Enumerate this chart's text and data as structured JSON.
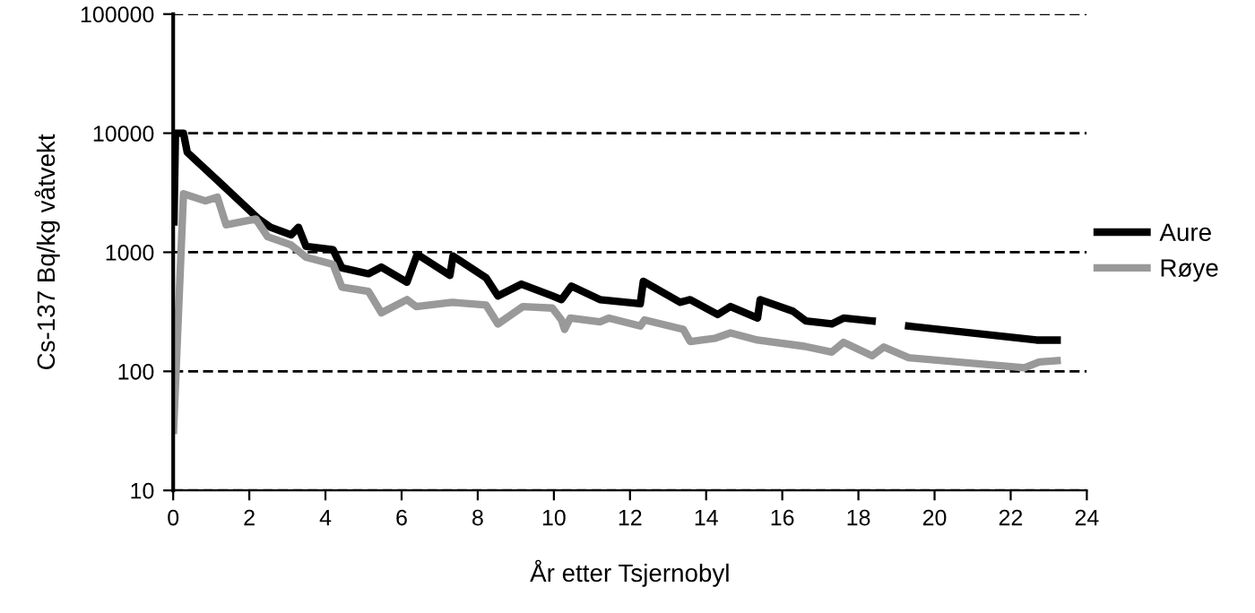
{
  "chart_data": {
    "type": "line",
    "xlabel": "År etter Tsjernobyl",
    "ylabel": "Cs-137 Bq/kg våtvekt",
    "log": "y",
    "xlim": [
      0,
      24
    ],
    "xticks": [
      0,
      2,
      4,
      6,
      8,
      10,
      12,
      14,
      16,
      18,
      20,
      22,
      24
    ],
    "ylim": [
      10,
      100000
    ],
    "yticks": [
      10,
      100,
      1000,
      10000,
      100000
    ],
    "grid": "y",
    "legend": "right",
    "line_style": "solid",
    "marker": "none",
    "series": [
      {
        "name": "Aure",
        "color": "#000000",
        "x": [
          0.02,
          0.06,
          0.27,
          0.37,
          1.54,
          2.25,
          2.56,
          3.1,
          3.29,
          3.49,
          4.2,
          4.43,
          5.13,
          5.47,
          6.14,
          6.41,
          7.27,
          7.35,
          8.22,
          8.53,
          9.15,
          9.96,
          10.2,
          10.46,
          11.21,
          12.27,
          12.35,
          13.32,
          13.58,
          14.3,
          14.64,
          15.35,
          15.42,
          16.28,
          16.62,
          17.3,
          17.61,
          18.36,
          18.8,
          19.32,
          22.68,
          23.22
        ],
        "values": [
          1800,
          10000,
          10000,
          6900,
          3100,
          1900,
          1620,
          1400,
          1620,
          1120,
          1050,
          740,
          660,
          750,
          560,
          960,
          640,
          930,
          610,
          430,
          540,
          430,
          400,
          520,
          400,
          370,
          570,
          380,
          400,
          300,
          350,
          280,
          400,
          320,
          265,
          250,
          280,
          265,
          null,
          240,
          183,
          183
        ]
      },
      {
        "name": "Røye",
        "color": "#999999",
        "x": [
          0.01,
          0.27,
          0.84,
          1.16,
          1.39,
          2.17,
          2.48,
          3.1,
          3.49,
          4.2,
          4.43,
          5.13,
          5.47,
          6.14,
          6.38,
          7.32,
          8.22,
          8.53,
          9.19,
          9.96,
          10.2,
          10.28,
          10.43,
          11.21,
          11.45,
          12.27,
          12.38,
          13.4,
          13.58,
          14.25,
          14.64,
          15.35,
          16.59,
          17.3,
          17.61,
          18.36,
          18.67,
          19.32,
          22.36,
          22.75,
          23.22
        ],
        "values": [
          32,
          3100,
          2700,
          2900,
          1700,
          1900,
          1350,
          1150,
          910,
          790,
          510,
          470,
          310,
          400,
          350,
          380,
          360,
          250,
          350,
          340,
          270,
          225,
          280,
          260,
          280,
          240,
          270,
          225,
          178,
          190,
          210,
          183,
          162,
          145,
          175,
          135,
          160,
          130,
          107,
          120,
          123
        ]
      }
    ]
  }
}
